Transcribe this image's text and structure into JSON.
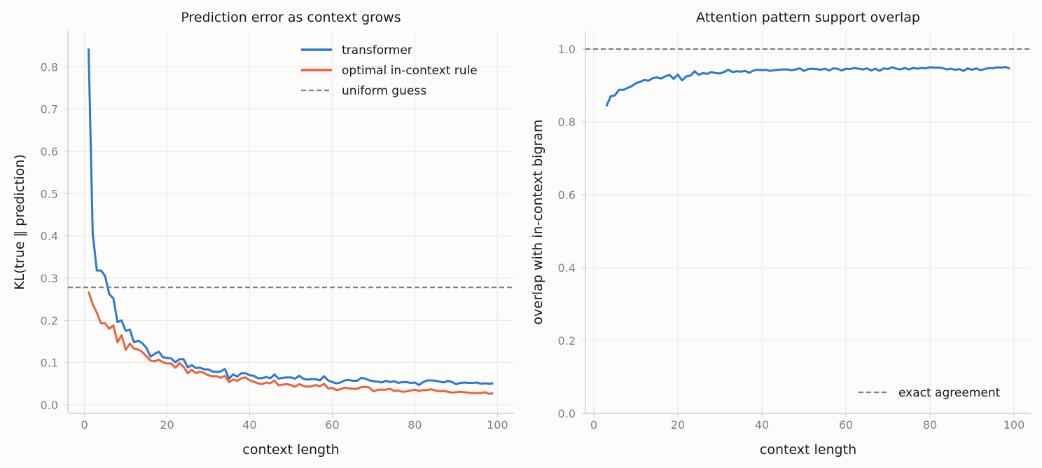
{
  "colors": {
    "transformer": "#2c77d3",
    "optimal": "#e8643a",
    "reference": "#808080",
    "grid": "#e6e6e6",
    "axis": "#c9c9c0"
  },
  "chart_data": [
    {
      "type": "line",
      "title": "Prediction error as context grows",
      "xlabel": "context length",
      "ylabel": "KL(true ‖ prediction)",
      "xlim": [
        -4,
        104
      ],
      "ylim": [
        -0.02,
        0.885
      ],
      "xticks": [
        0,
        20,
        40,
        60,
        80,
        100
      ],
      "yticks": [
        0.0,
        0.1,
        0.2,
        0.3,
        0.4,
        0.5,
        0.6,
        0.7,
        0.8
      ],
      "grid": true,
      "legend_position": "top-right",
      "series": [
        {
          "name": "transformer",
          "style": "solid",
          "color_key": "transformer",
          "x": [
            1,
            2,
            3,
            4,
            5,
            6,
            7,
            8,
            9,
            10,
            11,
            12,
            13,
            14,
            15,
            16,
            17,
            18,
            19,
            20,
            21,
            22,
            23,
            24,
            25,
            26,
            27,
            28,
            29,
            30,
            31,
            32,
            33,
            34,
            35,
            36,
            37,
            38,
            39,
            40,
            41,
            42,
            43,
            44,
            45,
            46,
            47,
            48,
            49,
            50,
            51,
            52,
            53,
            54,
            55,
            56,
            57,
            58,
            59,
            60,
            61,
            62,
            63,
            64,
            65,
            66,
            67,
            68,
            69,
            70,
            71,
            72,
            73,
            74,
            75,
            76,
            77,
            78,
            79,
            80,
            81,
            82,
            83,
            84,
            85,
            86,
            87,
            88,
            89,
            90,
            91,
            92,
            93,
            94,
            95,
            96,
            97,
            98,
            99
          ],
          "y": [
            0.843,
            0.405,
            0.318,
            0.318,
            0.305,
            0.262,
            0.252,
            0.196,
            0.2,
            0.175,
            0.178,
            0.148,
            0.152,
            0.146,
            0.135,
            0.114,
            0.121,
            0.126,
            0.113,
            0.111,
            0.11,
            0.101,
            0.108,
            0.108,
            0.089,
            0.094,
            0.087,
            0.088,
            0.084,
            0.084,
            0.079,
            0.078,
            0.079,
            0.085,
            0.062,
            0.072,
            0.067,
            0.075,
            0.075,
            0.07,
            0.069,
            0.063,
            0.063,
            0.066,
            0.063,
            0.072,
            0.062,
            0.064,
            0.065,
            0.065,
            0.062,
            0.069,
            0.062,
            0.06,
            0.061,
            0.061,
            0.058,
            0.068,
            0.058,
            0.054,
            0.051,
            0.053,
            0.058,
            0.059,
            0.057,
            0.057,
            0.064,
            0.062,
            0.058,
            0.056,
            0.055,
            0.053,
            0.057,
            0.054,
            0.056,
            0.052,
            0.054,
            0.054,
            0.052,
            0.053,
            0.047,
            0.054,
            0.058,
            0.058,
            0.057,
            0.055,
            0.053,
            0.057,
            0.054,
            0.049,
            0.052,
            0.053,
            0.052,
            0.052,
            0.053,
            0.05,
            0.051,
            0.05,
            0.051
          ]
        },
        {
          "name": "optimal in-context rule",
          "style": "solid",
          "color_key": "optimal",
          "x": [
            1,
            2,
            3,
            4,
            5,
            6,
            7,
            8,
            9,
            10,
            11,
            12,
            13,
            14,
            15,
            16,
            17,
            18,
            19,
            20,
            21,
            22,
            23,
            24,
            25,
            26,
            27,
            28,
            29,
            30,
            31,
            32,
            33,
            34,
            35,
            36,
            37,
            38,
            39,
            40,
            41,
            42,
            43,
            44,
            45,
            46,
            47,
            48,
            49,
            50,
            51,
            52,
            53,
            54,
            55,
            56,
            57,
            58,
            59,
            60,
            61,
            62,
            63,
            64,
            65,
            66,
            67,
            68,
            69,
            70,
            71,
            72,
            73,
            74,
            75,
            76,
            77,
            78,
            79,
            80,
            81,
            82,
            83,
            84,
            85,
            86,
            87,
            88,
            89,
            90,
            91,
            92,
            93,
            94,
            95,
            96,
            97,
            98,
            99
          ],
          "y": [
            0.268,
            0.238,
            0.218,
            0.193,
            0.193,
            0.18,
            0.188,
            0.148,
            0.165,
            0.13,
            0.145,
            0.133,
            0.131,
            0.125,
            0.115,
            0.105,
            0.103,
            0.107,
            0.101,
            0.098,
            0.098,
            0.088,
            0.099,
            0.09,
            0.075,
            0.083,
            0.075,
            0.079,
            0.075,
            0.07,
            0.068,
            0.068,
            0.064,
            0.069,
            0.054,
            0.06,
            0.057,
            0.063,
            0.065,
            0.058,
            0.055,
            0.051,
            0.049,
            0.053,
            0.051,
            0.058,
            0.046,
            0.048,
            0.049,
            0.047,
            0.043,
            0.049,
            0.045,
            0.043,
            0.044,
            0.047,
            0.044,
            0.05,
            0.039,
            0.04,
            0.035,
            0.037,
            0.041,
            0.039,
            0.038,
            0.038,
            0.042,
            0.043,
            0.041,
            0.032,
            0.036,
            0.036,
            0.036,
            0.038,
            0.033,
            0.034,
            0.031,
            0.032,
            0.034,
            0.036,
            0.033,
            0.035,
            0.035,
            0.037,
            0.034,
            0.032,
            0.033,
            0.031,
            0.029,
            0.03,
            0.031,
            0.03,
            0.029,
            0.028,
            0.028,
            0.028,
            0.03,
            0.026,
            0.028
          ]
        },
        {
          "name": "uniform guess",
          "style": "dashed",
          "color_key": "reference",
          "hline": 0.278
        }
      ]
    },
    {
      "type": "line",
      "title": "Attention pattern support overlap",
      "xlabel": "context length",
      "ylabel": "overlap with in-context bigram",
      "xlim": [
        -2,
        104
      ],
      "ylim": [
        0.0,
        1.05
      ],
      "xticks": [
        0,
        20,
        40,
        60,
        80,
        100
      ],
      "yticks": [
        0.0,
        0.2,
        0.4,
        0.6,
        0.8,
        1.0
      ],
      "grid": true,
      "legend_position": "bottom-right",
      "series": [
        {
          "name": "transformer",
          "style": "solid",
          "color_key": "transformer",
          "show_in_legend": false,
          "x": [
            3,
            4,
            5,
            6,
            7,
            8,
            9,
            10,
            11,
            12,
            13,
            14,
            15,
            16,
            17,
            18,
            19,
            20,
            21,
            22,
            23,
            24,
            25,
            26,
            27,
            28,
            29,
            30,
            31,
            32,
            33,
            34,
            35,
            36,
            37,
            38,
            39,
            40,
            41,
            42,
            43,
            44,
            45,
            46,
            47,
            48,
            49,
            50,
            51,
            52,
            53,
            54,
            55,
            56,
            57,
            58,
            59,
            60,
            61,
            62,
            63,
            64,
            65,
            66,
            67,
            68,
            69,
            70,
            71,
            72,
            73,
            74,
            75,
            76,
            77,
            78,
            79,
            80,
            81,
            82,
            83,
            84,
            85,
            86,
            87,
            88,
            89,
            90,
            91,
            92,
            93,
            94,
            95,
            96,
            97,
            98,
            99
          ],
          "y": [
            0.843,
            0.87,
            0.873,
            0.888,
            0.888,
            0.893,
            0.898,
            0.906,
            0.91,
            0.915,
            0.913,
            0.92,
            0.922,
            0.919,
            0.925,
            0.929,
            0.918,
            0.93,
            0.914,
            0.925,
            0.927,
            0.939,
            0.929,
            0.934,
            0.932,
            0.937,
            0.934,
            0.933,
            0.937,
            0.943,
            0.937,
            0.939,
            0.938,
            0.94,
            0.935,
            0.941,
            0.943,
            0.942,
            0.943,
            0.94,
            0.942,
            0.943,
            0.944,
            0.944,
            0.942,
            0.944,
            0.947,
            0.94,
            0.945,
            0.946,
            0.945,
            0.943,
            0.946,
            0.941,
            0.947,
            0.946,
            0.941,
            0.946,
            0.945,
            0.948,
            0.946,
            0.944,
            0.947,
            0.941,
            0.946,
            0.94,
            0.947,
            0.945,
            0.95,
            0.946,
            0.944,
            0.948,
            0.944,
            0.948,
            0.946,
            0.948,
            0.947,
            0.95,
            0.949,
            0.949,
            0.948,
            0.944,
            0.946,
            0.943,
            0.945,
            0.94,
            0.947,
            0.943,
            0.947,
            0.942,
            0.945,
            0.948,
            0.947,
            0.95,
            0.949,
            0.951,
            0.946
          ]
        },
        {
          "name": "exact agreement",
          "style": "dashed",
          "color_key": "reference",
          "hline": 1.0
        }
      ]
    }
  ]
}
